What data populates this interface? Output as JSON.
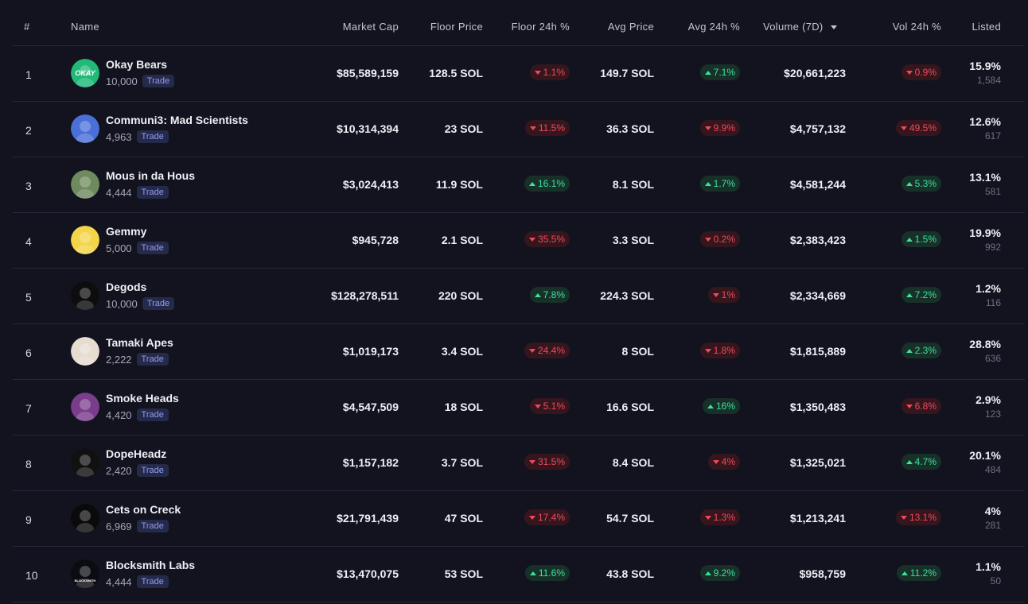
{
  "headers": {
    "rank": "#",
    "name": "Name",
    "market_cap": "Market Cap",
    "floor_price": "Floor Price",
    "floor_24h": "Floor 24h %",
    "avg_price": "Avg Price",
    "avg_24h": "Avg 24h %",
    "volume_7d": "Volume (7D)",
    "vol_24h": "Vol 24h %",
    "listed": "Listed"
  },
  "trade_label": "Trade",
  "colors": {
    "up": "#3ee0a0",
    "down": "#f0485e",
    "background": "#12131e"
  },
  "rows": [
    {
      "rank": "1",
      "name": "Okay Bears",
      "supply": "10,000",
      "market_cap": "$85,589,159",
      "floor_price": "128.5 SOL",
      "floor_24h": "1.1%",
      "floor_dir": "down",
      "avg_price": "149.7 SOL",
      "avg_24h": "7.1%",
      "avg_dir": "up",
      "volume": "$20,661,223",
      "vol_24h": "0.9%",
      "vol_dir": "down",
      "listed_pct": "15.9%",
      "listed_count": "1,584",
      "logo_text": "OKAY",
      "avatar_color": "#1fb978"
    },
    {
      "rank": "2",
      "name": "Communi3: Mad Scientists",
      "supply": "4,963",
      "market_cap": "$10,314,394",
      "floor_price": "23 SOL",
      "floor_24h": "11.5%",
      "floor_dir": "down",
      "avg_price": "36.3 SOL",
      "avg_24h": "9.9%",
      "avg_dir": "down",
      "volume": "$4,757,132",
      "vol_24h": "49.5%",
      "vol_dir": "down",
      "listed_pct": "12.6%",
      "listed_count": "617",
      "logo_text": "",
      "avatar_color": "#4a6fd8"
    },
    {
      "rank": "3",
      "name": "Mous in da Hous",
      "supply": "4,444",
      "market_cap": "$3,024,413",
      "floor_price": "11.9 SOL",
      "floor_24h": "16.1%",
      "floor_dir": "up",
      "avg_price": "8.1 SOL",
      "avg_24h": "1.7%",
      "avg_dir": "up",
      "volume": "$4,581,244",
      "vol_24h": "5.3%",
      "vol_dir": "up",
      "listed_pct": "13.1%",
      "listed_count": "581",
      "logo_text": "",
      "avatar_color": "#6f8a5e"
    },
    {
      "rank": "4",
      "name": "Gemmy",
      "supply": "5,000",
      "market_cap": "$945,728",
      "floor_price": "2.1 SOL",
      "floor_24h": "35.5%",
      "floor_dir": "down",
      "avg_price": "3.3 SOL",
      "avg_24h": "0.2%",
      "avg_dir": "down",
      "volume": "$2,383,423",
      "vol_24h": "1.5%",
      "vol_dir": "up",
      "listed_pct": "19.9%",
      "listed_count": "992",
      "logo_text": "",
      "avatar_color": "#f3d54a"
    },
    {
      "rank": "5",
      "name": "Degods",
      "supply": "10,000",
      "market_cap": "$128,278,511",
      "floor_price": "220 SOL",
      "floor_24h": "7.8%",
      "floor_dir": "up",
      "avg_price": "224.3 SOL",
      "avg_24h": "1%",
      "avg_dir": "down",
      "volume": "$2,334,669",
      "vol_24h": "7.2%",
      "vol_dir": "up",
      "listed_pct": "1.2%",
      "listed_count": "116",
      "logo_text": "",
      "avatar_color": "#0d0d0d"
    },
    {
      "rank": "6",
      "name": "Tamaki Apes",
      "supply": "2,222",
      "market_cap": "$1,019,173",
      "floor_price": "3.4 SOL",
      "floor_24h": "24.4%",
      "floor_dir": "down",
      "avg_price": "8 SOL",
      "avg_24h": "1.8%",
      "avg_dir": "down",
      "volume": "$1,815,889",
      "vol_24h": "2.3%",
      "vol_dir": "up",
      "listed_pct": "28.8%",
      "listed_count": "636",
      "logo_text": "",
      "avatar_color": "#e6dcd0"
    },
    {
      "rank": "7",
      "name": "Smoke Heads",
      "supply": "4,420",
      "market_cap": "$4,547,509",
      "floor_price": "18 SOL",
      "floor_24h": "5.1%",
      "floor_dir": "down",
      "avg_price": "16.6 SOL",
      "avg_24h": "16%",
      "avg_dir": "up",
      "volume": "$1,350,483",
      "vol_24h": "6.8%",
      "vol_dir": "down",
      "listed_pct": "2.9%",
      "listed_count": "123",
      "logo_text": "",
      "avatar_color": "#7a3d8c"
    },
    {
      "rank": "8",
      "name": "DopeHeadz",
      "supply": "2,420",
      "market_cap": "$1,157,182",
      "floor_price": "3.7 SOL",
      "floor_24h": "31.5%",
      "floor_dir": "down",
      "avg_price": "8.4 SOL",
      "avg_24h": "4%",
      "avg_dir": "down",
      "volume": "$1,325,021",
      "vol_24h": "4.7%",
      "vol_dir": "up",
      "listed_pct": "20.1%",
      "listed_count": "484",
      "logo_text": "",
      "avatar_color": "#111111"
    },
    {
      "rank": "9",
      "name": "Cets on Creck",
      "supply": "6,969",
      "market_cap": "$21,791,439",
      "floor_price": "47 SOL",
      "floor_24h": "17.4%",
      "floor_dir": "down",
      "avg_price": "54.7 SOL",
      "avg_24h": "1.3%",
      "avg_dir": "down",
      "volume": "$1,213,241",
      "vol_24h": "13.1%",
      "vol_dir": "down",
      "listed_pct": "4%",
      "listed_count": "281",
      "logo_text": "",
      "avatar_color": "#0a0a0a"
    },
    {
      "rank": "10",
      "name": "Blocksmith Labs",
      "supply": "4,444",
      "market_cap": "$13,470,075",
      "floor_price": "53 SOL",
      "floor_24h": "11.6%",
      "floor_dir": "up",
      "avg_price": "43.8 SOL",
      "avg_24h": "9.2%",
      "avg_dir": "up",
      "volume": "$958,759",
      "vol_24h": "11.2%",
      "vol_dir": "up",
      "listed_pct": "1.1%",
      "listed_count": "50",
      "logo_text": "BLOCKSMITH",
      "avatar_color": "#0b0b12"
    }
  ]
}
